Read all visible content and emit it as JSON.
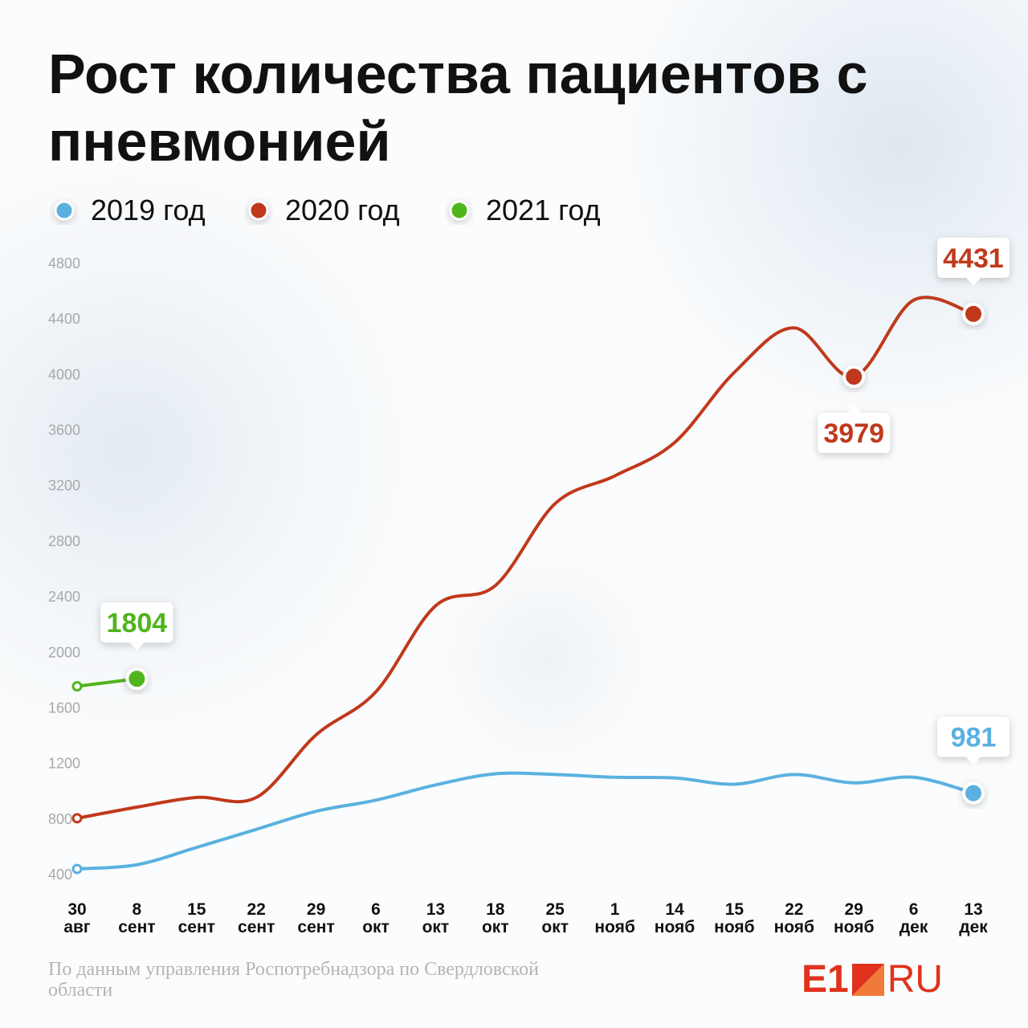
{
  "chart_data": {
    "type": "line",
    "title": "Рост количества пациентов с пневмонией",
    "categories": [
      "30 авг",
      "8 сент",
      "15 сент",
      "22 сент",
      "29 сент",
      "6 окт",
      "13 окт",
      "18 окт",
      "25 окт",
      "1 нояб",
      "14 нояб",
      "15 нояб",
      "22 нояб",
      "29 нояб",
      "6 дек",
      "13 дек"
    ],
    "series": [
      {
        "name": "2019 год",
        "color": "#5ab1e0",
        "values": [
          435,
          465,
          590,
          720,
          850,
          930,
          1040,
          1120,
          1115,
          1095,
          1090,
          1045,
          1115,
          1055,
          1095,
          981
        ],
        "value_labels": [
          null,
          null,
          null,
          null,
          null,
          null,
          null,
          null,
          null,
          null,
          null,
          null,
          null,
          null,
          null,
          "981"
        ]
      },
      {
        "name": "2020 год",
        "color": "#c0391b",
        "values": [
          800,
          880,
          950,
          950,
          1400,
          1710,
          2330,
          2475,
          3065,
          3265,
          3505,
          4010,
          4330,
          3979,
          4530,
          4431
        ],
        "value_labels": [
          null,
          null,
          null,
          null,
          null,
          null,
          null,
          null,
          null,
          null,
          null,
          null,
          null,
          "3979",
          null,
          "4431"
        ]
      },
      {
        "name": "2021 год",
        "color": "#4fb51c",
        "values": [
          1750,
          1804,
          null,
          null,
          null,
          null,
          null,
          null,
          null,
          null,
          null,
          null,
          null,
          null,
          null,
          null
        ],
        "value_labels": [
          null,
          "1804",
          null,
          null,
          null,
          null,
          null,
          null,
          null,
          null,
          null,
          null,
          null,
          null,
          null,
          null
        ]
      }
    ],
    "ylim": [
      400,
      4800
    ],
    "yticks": [
      400,
      800,
      1200,
      1600,
      2000,
      2400,
      2800,
      3200,
      3600,
      4000,
      4400,
      4800
    ],
    "grid": false,
    "source": "По данным управления Роспотребнадзора по Свердловской области",
    "logo": {
      "left": "E1",
      "right": "RU"
    }
  }
}
